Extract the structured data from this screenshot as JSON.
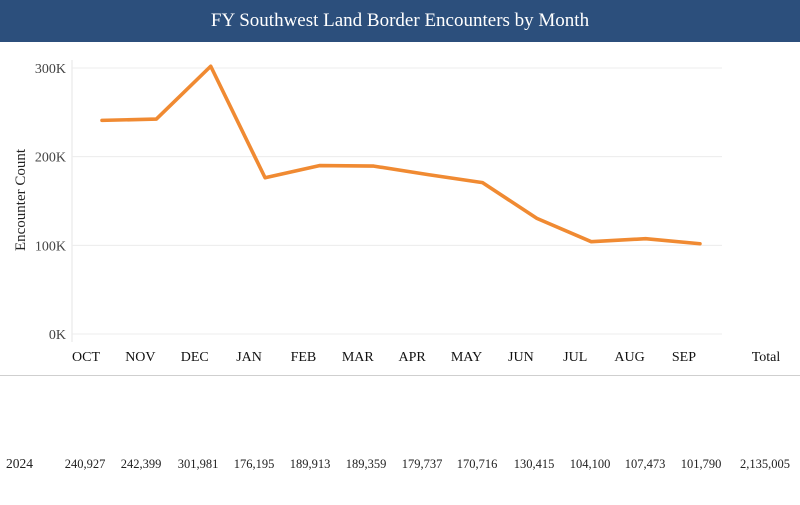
{
  "title": "FY Southwest Land Border Encounters by Month",
  "colors": {
    "header_bg": "#2c4f7c",
    "line": "#f08a32",
    "grid": "#ececec"
  },
  "chart_data": {
    "type": "line",
    "title": "FY Southwest Land Border Encounters by Month",
    "xlabel": "",
    "ylabel": "Encounter Count",
    "categories": [
      "OCT",
      "NOV",
      "DEC",
      "JAN",
      "FEB",
      "MAR",
      "APR",
      "MAY",
      "JUN",
      "JUL",
      "AUG",
      "SEP"
    ],
    "total_label": "Total",
    "ylim": [
      0,
      300000
    ],
    "yticks": [
      0,
      100000,
      200000,
      300000
    ],
    "ytick_labels": [
      "0K",
      "100K",
      "200K",
      "300K"
    ],
    "grid": true,
    "series": [
      {
        "name": "2024",
        "values": [
          240927,
          242399,
          301981,
          176195,
          189913,
          189359,
          179737,
          170716,
          130415,
          104100,
          107473,
          101790
        ]
      }
    ]
  },
  "table": {
    "row_label": "2024",
    "cells": [
      "240,927",
      "242,399",
      "301,981",
      "176,195",
      "189,913",
      "189,359",
      "179,737",
      "170,716",
      "130,415",
      "104,100",
      "107,473",
      "101,790"
    ],
    "total": "2,135,005"
  }
}
